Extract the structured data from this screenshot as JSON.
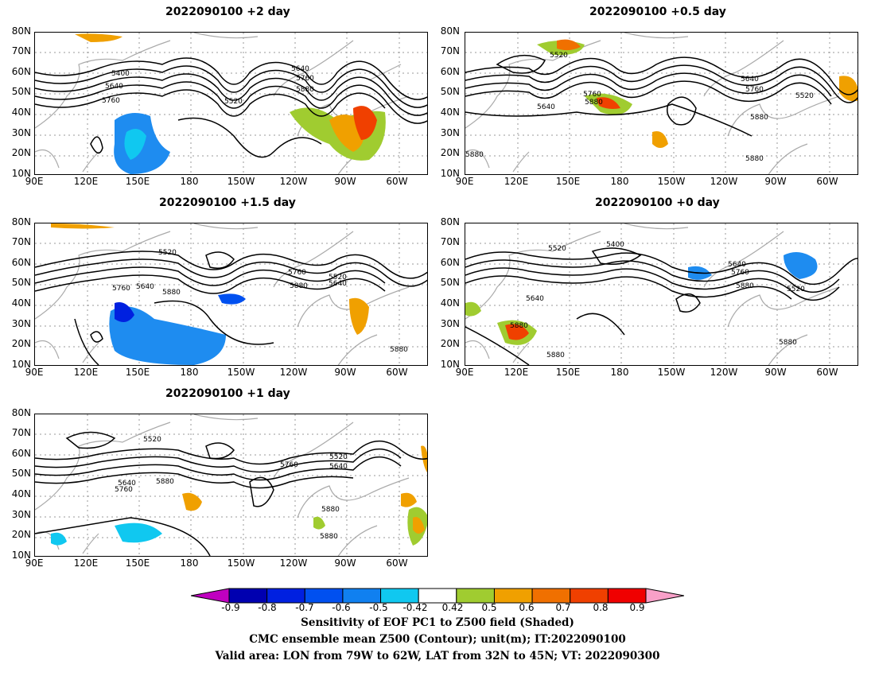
{
  "panels": [
    {
      "title": "2022090100 +2 day"
    },
    {
      "title": "2022090100 +0.5 day"
    },
    {
      "title": "2022090100 +1.5 day"
    },
    {
      "title": "2022090100 +0 day"
    },
    {
      "title": "2022090100 +1 day"
    }
  ],
  "axes": {
    "lat_labels": [
      "80N",
      "70N",
      "60N",
      "50N",
      "40N",
      "30N",
      "20N",
      "10N"
    ],
    "lon_labels": [
      "90E",
      "120E",
      "150E",
      "180",
      "150W",
      "120W",
      "90W",
      "60W"
    ]
  },
  "contour_labels": {
    "p0": [
      "5400",
      "5640",
      "5760",
      "5640",
      "5760",
      "5880",
      "5520"
    ],
    "p1": [
      "5520",
      "5760",
      "5880",
      "5640",
      "5640",
      "5760",
      "5520",
      "5880",
      "5880",
      "5880"
    ],
    "p2": [
      "5520",
      "5760",
      "5640",
      "5880",
      "5760",
      "5880",
      "5520",
      "5640",
      "5880"
    ],
    "p3": [
      "5520",
      "5400",
      "5640",
      "5760",
      "5880",
      "5520",
      "5880",
      "5640",
      "5880",
      "5880"
    ],
    "p4": [
      "5520",
      "5640",
      "5760",
      "5880",
      "5760",
      "5520",
      "5640",
      "5880",
      "5880"
    ]
  },
  "colorbar": {
    "labels": [
      "-0.9",
      "-0.8",
      "-0.7",
      "-0.6",
      "-0.5",
      "-0.42",
      "0.42",
      "0.5",
      "0.6",
      "0.7",
      "0.8",
      "0.9"
    ],
    "colors": [
      "#c000c0",
      "#0000b0",
      "#0020e0",
      "#0050f0",
      "#1080f0",
      "#10c8f0",
      "#ffffff",
      "#a0cc30",
      "#f0a000",
      "#f07000",
      "#f04000",
      "#f00000",
      "#f8a0c8"
    ]
  },
  "caption": {
    "line1": "Sensitivity of EOF PC1 to Z500 field (Shaded)",
    "line2": "CMC ensemble mean Z500 (Contour); unit(m); IT:2022090100",
    "line3": "Valid area: LON from 79W to 62W, LAT from 32N to 45N; VT: 2022090300"
  }
}
